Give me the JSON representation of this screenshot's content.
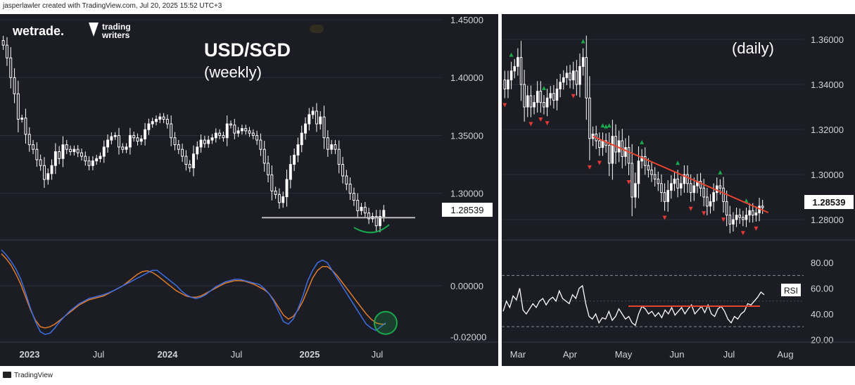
{
  "credit": "jasperlawler created with TradingView.com, Jul 20, 2025 15:52 UTC+3",
  "footer": "TradingView",
  "logos": {
    "wetrade": "wetrade.",
    "tw1": "trading",
    "tw2": "writers"
  },
  "colors": {
    "bg": "#1b1c24",
    "up_arrow": "#1aa84a",
    "down_arrow": "#e53935",
    "trendline": "#e8442e",
    "fast": "#3e6fe0",
    "slow": "#e07c2a",
    "circle": "#1aa84a",
    "support": "#bdbdbd"
  },
  "chart_data": [
    {
      "type": "candlestick",
      "title": "USD/SGD",
      "subtitle": "(weekly)",
      "x_ticks": [
        "2023",
        "Jul",
        "2024",
        "Jul",
        "2025",
        "Jul"
      ],
      "y_ticks": [
        "1.45000",
        "1.40000",
        "1.35000",
        "1.30000"
      ],
      "ylim": [
        1.27,
        1.45
      ],
      "last_price": "1.28539",
      "support_level": 1.279,
      "closes": [
        1.428,
        1.417,
        1.4,
        1.386,
        1.364,
        1.365,
        1.351,
        1.342,
        1.338,
        1.329,
        1.324,
        1.312,
        1.317,
        1.324,
        1.336,
        1.33,
        1.342,
        1.338,
        1.336,
        1.338,
        1.335,
        1.332,
        1.328,
        1.324,
        1.328,
        1.33,
        1.332,
        1.34,
        1.346,
        1.349,
        1.35,
        1.34,
        1.338,
        1.34,
        1.35,
        1.348,
        1.345,
        1.347,
        1.355,
        1.36,
        1.362,
        1.364,
        1.366,
        1.364,
        1.36,
        1.348,
        1.342,
        1.338,
        1.332,
        1.325,
        1.322,
        1.334,
        1.34,
        1.346,
        1.343,
        1.346,
        1.348,
        1.352,
        1.35,
        1.348,
        1.36,
        1.359,
        1.352,
        1.354,
        1.356,
        1.354,
        1.352,
        1.35,
        1.346,
        1.338,
        1.326,
        1.316,
        1.302,
        1.299,
        1.292,
        1.297,
        1.312,
        1.325,
        1.333,
        1.342,
        1.352,
        1.36,
        1.368,
        1.371,
        1.36,
        1.366,
        1.348,
        1.338,
        1.342,
        1.338,
        1.325,
        1.315,
        1.308,
        1.3,
        1.294,
        1.285,
        1.288,
        1.283,
        1.278,
        1.28,
        1.272,
        1.28,
        1.2853
      ],
      "indicator": {
        "y_ticks": [
          "0.00000",
          "-0.02000"
        ],
        "ylim": [
          -0.022,
          0.014
        ],
        "fast": [
          0.014,
          0.012,
          0.0095,
          0.0065,
          0.0025,
          -0.003,
          -0.009,
          -0.014,
          -0.018,
          -0.019,
          -0.0185,
          -0.0165,
          -0.014,
          -0.012,
          -0.01,
          -0.0085,
          -0.007,
          -0.006,
          -0.005,
          -0.0045,
          -0.004,
          -0.0035,
          -0.0028,
          -0.002,
          -0.001,
          0.0,
          0.001,
          0.002,
          0.003,
          0.004,
          0.005,
          0.006,
          0.006,
          0.0045,
          0.003,
          0.0015,
          0.0,
          -0.002,
          -0.0035,
          -0.0045,
          -0.005,
          -0.0045,
          -0.0035,
          -0.002,
          -0.0005,
          0.0005,
          0.0015,
          0.002,
          0.0025,
          0.0025,
          0.002,
          0.0015,
          0.001,
          0.0005,
          -0.001,
          -0.003,
          -0.006,
          -0.01,
          -0.014,
          -0.015,
          -0.013,
          -0.009,
          -0.004,
          0.002,
          0.006,
          0.009,
          0.01,
          0.009,
          0.006,
          0.003,
          0.0,
          -0.003,
          -0.006,
          -0.009,
          -0.012,
          -0.015,
          -0.0165,
          -0.0175,
          -0.016,
          -0.0145
        ],
        "slow": [
          0.0125,
          0.0105,
          0.008,
          0.0045,
          0.0005,
          -0.0045,
          -0.0095,
          -0.0135,
          -0.016,
          -0.0165,
          -0.016,
          -0.015,
          -0.0135,
          -0.012,
          -0.0105,
          -0.009,
          -0.0075,
          -0.0065,
          -0.0055,
          -0.005,
          -0.0045,
          -0.004,
          -0.003,
          -0.002,
          -0.001,
          0.0,
          0.0015,
          0.003,
          0.0045,
          0.0055,
          0.0058,
          0.0052,
          0.004,
          0.0025,
          0.001,
          -0.0005,
          -0.002,
          -0.003,
          -0.004,
          -0.0045,
          -0.0045,
          -0.004,
          -0.003,
          -0.002,
          -0.001,
          0.0,
          0.001,
          0.0015,
          0.002,
          0.002,
          0.0018,
          0.0012,
          0.0005,
          -0.0005,
          -0.0015,
          -0.003,
          -0.0055,
          -0.0085,
          -0.0115,
          -0.013,
          -0.012,
          -0.0095,
          -0.006,
          -0.0015,
          0.003,
          0.006,
          0.0075,
          0.0075,
          0.006,
          0.004,
          0.0015,
          -0.001,
          -0.0035,
          -0.006,
          -0.0085,
          -0.011,
          -0.013,
          -0.0145,
          -0.015,
          -0.015
        ]
      }
    },
    {
      "type": "candlestick",
      "title": "(daily)",
      "x_ticks": [
        "Mar",
        "Apr",
        "May",
        "Jun",
        "Jul",
        "Aug"
      ],
      "y_ticks": [
        "1.36000",
        "1.34000",
        "1.32000",
        "1.30000",
        "1.28000"
      ],
      "ylim": [
        1.27,
        1.365
      ],
      "last_price": "1.28539",
      "closes": [
        1.338,
        1.342,
        1.346,
        1.348,
        1.352,
        1.34,
        1.33,
        1.335,
        1.33,
        1.332,
        1.337,
        1.332,
        1.33,
        1.334,
        1.336,
        1.333,
        1.338,
        1.341,
        1.343,
        1.345,
        1.342,
        1.346,
        1.34,
        1.348,
        1.352,
        1.334,
        1.316,
        1.318,
        1.315,
        1.312,
        1.315,
        1.313,
        1.305,
        1.317,
        1.31,
        1.315,
        1.308,
        1.312,
        1.305,
        1.29,
        1.296,
        1.306,
        1.308,
        1.304,
        1.302,
        1.3,
        1.298,
        1.296,
        1.292,
        1.288,
        1.293,
        1.296,
        1.298,
        1.294,
        1.296,
        1.3,
        1.296,
        1.292,
        1.295,
        1.297,
        1.294,
        1.29,
        1.286,
        1.288,
        1.292,
        1.295,
        1.294,
        1.288,
        1.282,
        1.278,
        1.28,
        1.282,
        1.281,
        1.28,
        1.282,
        1.284,
        1.282,
        1.283,
        1.286,
        1.2853
      ],
      "highs_marks": [
        2,
        12,
        24,
        30,
        31,
        32,
        42,
        53,
        66,
        74
      ],
      "lows_marks": [
        0,
        8,
        11,
        13,
        21,
        26,
        29,
        38,
        49,
        57,
        61,
        67,
        73,
        77
      ],
      "trendline": [
        [
          27,
          1.317
        ],
        [
          79,
          1.285
        ]
      ],
      "rsi": {
        "label": "RSI",
        "y_ticks": [
          "80.00",
          "60.00",
          "40.00",
          "20.00"
        ],
        "ylim": [
          18,
          90
        ],
        "dashed_levels": [
          70,
          30
        ],
        "support_level": 46,
        "values": [
          42,
          50,
          45,
          54,
          51,
          60,
          43,
          40,
          44,
          48,
          45,
          50,
          52,
          47,
          51,
          53,
          50,
          58,
          52,
          50,
          48,
          55,
          52,
          60,
          62,
          48,
          38,
          36,
          40,
          33,
          37,
          36,
          42,
          35,
          38,
          44,
          40,
          36,
          38,
          33,
          31,
          40,
          46,
          44,
          40,
          42,
          38,
          41,
          37,
          43,
          40,
          45,
          39,
          42,
          45,
          40,
          44,
          47,
          40,
          43,
          46,
          41,
          47,
          40,
          38,
          44,
          46,
          42,
          36,
          33,
          38,
          36,
          40,
          42,
          48,
          47,
          50,
          53,
          57,
          55
        ]
      }
    }
  ]
}
